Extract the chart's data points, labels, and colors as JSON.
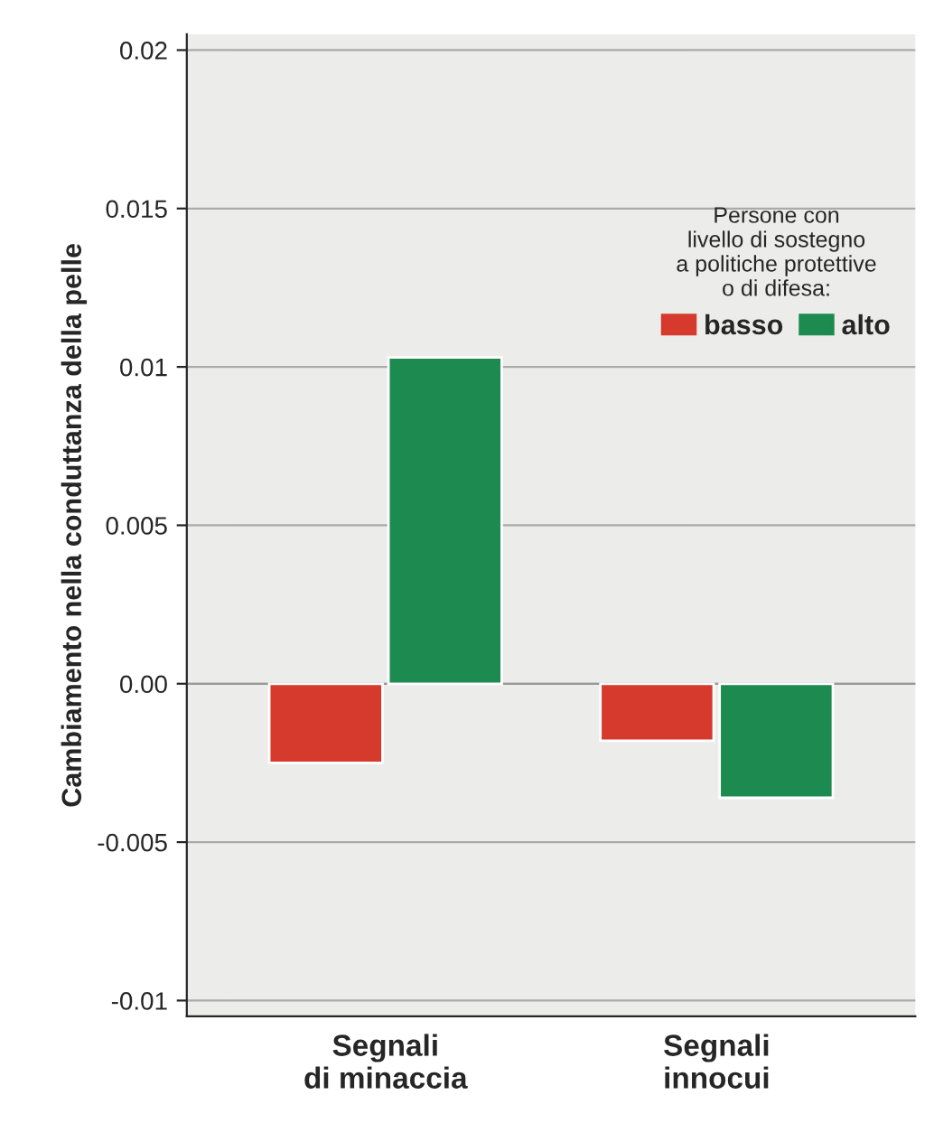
{
  "chart_data": {
    "type": "bar",
    "ylabel": "Cambiamento nella conduttanza della pelle",
    "legend_title": "Persone con\nlivello di sostegno\na politiche protettive\no di difesa:",
    "categories": [
      "Segnali\ndi minaccia",
      "Segnali\ninnocui"
    ],
    "series": [
      {
        "name": "basso",
        "color": "#d63a2c",
        "values": [
          -0.0025,
          -0.0018
        ]
      },
      {
        "name": "alto",
        "color": "#1d8a50",
        "values": [
          0.0103,
          -0.0036
        ]
      }
    ],
    "ylim": [
      -0.0105,
      0.0205
    ],
    "yticks": [
      {
        "value": 0.02,
        "label": "0.02"
      },
      {
        "value": 0.015,
        "label": "0.015"
      },
      {
        "value": 0.01,
        "label": "0.01"
      },
      {
        "value": 0.005,
        "label": "0.005"
      },
      {
        "value": 0,
        "label": "0.00"
      },
      {
        "value": -0.005,
        "label": "-0.005"
      },
      {
        "value": -0.01,
        "label": "-0.01"
      }
    ],
    "grid": "y",
    "legend": "top right"
  }
}
